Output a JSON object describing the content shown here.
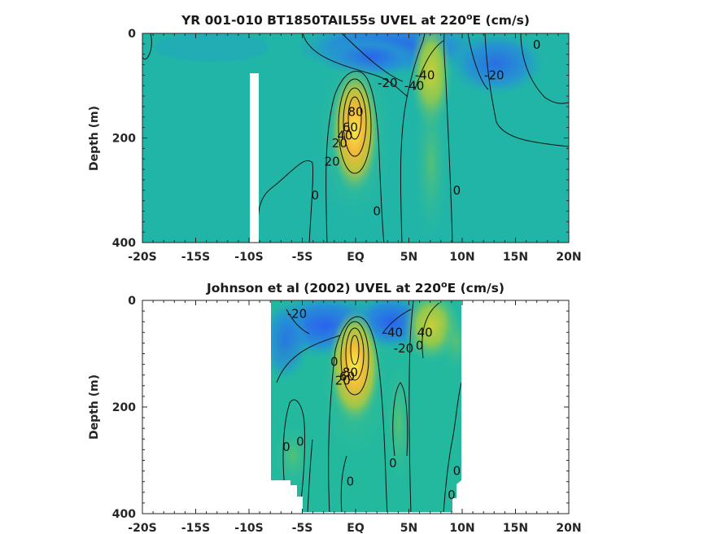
{
  "chart_data": [
    {
      "type": "heatmap",
      "title_prefix": "YR 001-010 BT1850TAIL55s UVEL at 220",
      "title_sup": "o",
      "title_suffix": "E (cm/s)",
      "xlabel": "",
      "ylabel": "Depth (m)",
      "xlim": [
        -20,
        20
      ],
      "ylim": [
        0,
        400
      ],
      "y_reversed": true,
      "x_ticks": [
        -20,
        -15,
        -10,
        -5,
        0,
        5,
        10,
        15,
        20
      ],
      "x_tick_labels": [
        "-20S",
        "-15S",
        "-10S",
        "-5S",
        "EQ",
        "5N",
        "10N",
        "15N",
        "20N"
      ],
      "y_ticks": [
        0,
        200,
        400
      ],
      "y_tick_labels": [
        "0",
        "200",
        "400"
      ],
      "contour_labels": [
        {
          "text": "0",
          "x": 17,
          "y": 22
        },
        {
          "text": "-20",
          "x": 13,
          "y": 80
        },
        {
          "text": "-40",
          "x": 6.5,
          "y": 80
        },
        {
          "text": "-20",
          "x": 3,
          "y": 95
        },
        {
          "text": "-40",
          "x": 5.5,
          "y": 100
        },
        {
          "text": "80",
          "x": 0,
          "y": 150
        },
        {
          "text": "60",
          "x": -0.5,
          "y": 180
        },
        {
          "text": "40",
          "x": -1,
          "y": 195
        },
        {
          "text": "20",
          "x": -1.5,
          "y": 210
        },
        {
          "text": "20",
          "x": -2.2,
          "y": 245
        },
        {
          "text": "0",
          "x": -3.8,
          "y": 310
        },
        {
          "text": "0",
          "x": 2,
          "y": 340
        },
        {
          "text": "0",
          "x": 9.5,
          "y": 300
        }
      ]
    },
    {
      "type": "heatmap",
      "title_prefix": "Johnson et al (2002) UVEL at 220",
      "title_sup": "o",
      "title_suffix": "E (cm/s)",
      "xlabel": "",
      "ylabel": "Depth (m)",
      "xlim": [
        -20,
        20
      ],
      "ylim": [
        0,
        400
      ],
      "y_reversed": true,
      "x_ticks": [
        -20,
        -15,
        -10,
        -5,
        0,
        5,
        10,
        15,
        20
      ],
      "x_tick_labels": [
        "-20S",
        "-15S",
        "-10S",
        "-5S",
        "EQ",
        "5N",
        "10N",
        "15N",
        "20N"
      ],
      "y_ticks": [
        0,
        200,
        400
      ],
      "y_tick_labels": [
        "0",
        "200",
        "400"
      ],
      "contour_labels": [
        {
          "text": "-20",
          "x": -5.5,
          "y": 25
        },
        {
          "text": "-40",
          "x": 3.5,
          "y": 60
        },
        {
          "text": "-20",
          "x": 4.5,
          "y": 90
        },
        {
          "text": "0",
          "x": 6,
          "y": 85
        },
        {
          "text": "40",
          "x": 6.5,
          "y": 60
        },
        {
          "text": "0",
          "x": -2,
          "y": 115
        },
        {
          "text": "80",
          "x": -0.5,
          "y": 135
        },
        {
          "text": "60",
          "x": -0.8,
          "y": 143
        },
        {
          "text": "20",
          "x": -1.2,
          "y": 150
        },
        {
          "text": "0",
          "x": -6.5,
          "y": 275
        },
        {
          "text": "0",
          "x": -5.2,
          "y": 265
        },
        {
          "text": "0",
          "x": 3.5,
          "y": 305
        },
        {
          "text": "0",
          "x": 9.5,
          "y": 320
        },
        {
          "text": "0",
          "x": -0.5,
          "y": 340
        },
        {
          "text": "0",
          "x": 9,
          "y": 365
        }
      ]
    }
  ],
  "colors": {
    "background_field": "#1fb8a0",
    "strong_westward": "#2a6fe8",
    "weak_westward": "#1f9bc8",
    "eastward_moderate": "#7cc84a",
    "eastward_strong": "#f0c030",
    "eastward_core": "#f8e84a",
    "contour_line": "#111111",
    "masked": "#ffffff"
  }
}
